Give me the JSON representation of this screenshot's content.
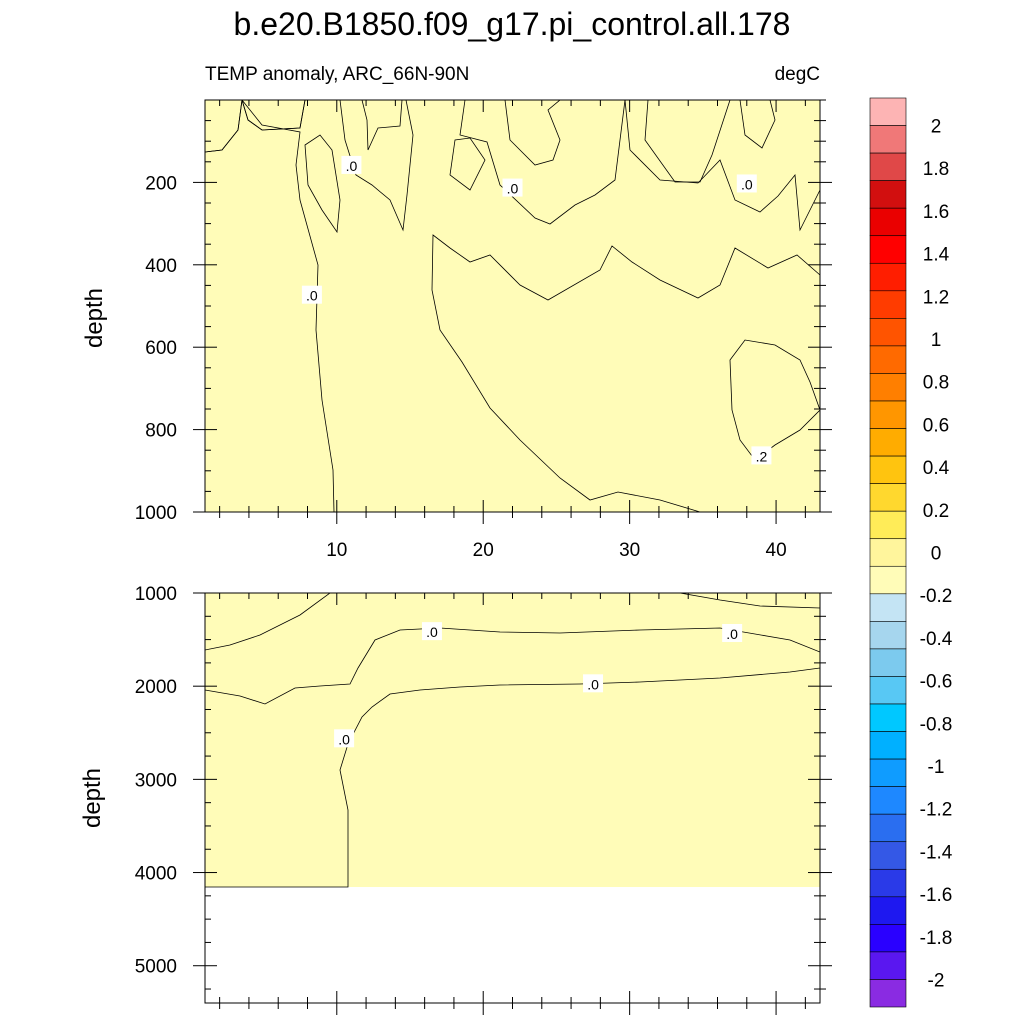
{
  "title": "b.e20.B1850.f09_g17.pi_control.all.178",
  "subtitle_left": "TEMP anomaly, ARC_66N-90N",
  "subtitle_right": "degC",
  "chart_data": [
    {
      "type": "heatmap",
      "panel": "upper",
      "xlabel": "",
      "ylabel": "depth",
      "xlim": [
        1,
        43
      ],
      "ylim": [
        1000,
        0
      ],
      "x_ticks": [
        10,
        20,
        30,
        40
      ],
      "y_ticks": [
        200,
        400,
        600,
        800,
        1000
      ],
      "contour_labels": [
        {
          "text": ".0",
          "x": 11.0,
          "y": 160
        },
        {
          "text": ".0",
          "x": 22.0,
          "y": 215
        },
        {
          "text": ".0",
          "x": 38.0,
          "y": 205
        },
        {
          "text": ".0",
          "x": 8.3,
          "y": 475
        },
        {
          "text": ".2",
          "x": 39.0,
          "y": 865
        }
      ]
    },
    {
      "type": "heatmap",
      "panel": "lower",
      "xlabel": "",
      "ylabel": "depth",
      "xlim": [
        1,
        43
      ],
      "ylim": [
        5400,
        1000
      ],
      "x_ticks": [
        10,
        20,
        30,
        40
      ],
      "y_ticks": [
        1000,
        2000,
        3000,
        4000,
        5000
      ],
      "data_bottom": 4120,
      "contour_labels": [
        {
          "text": ".0",
          "x": 16.5,
          "y": 1420
        },
        {
          "text": ".0",
          "x": 37.0,
          "y": 1440
        },
        {
          "text": ".0",
          "x": 27.5,
          "y": 1980
        },
        {
          "text": ".0",
          "x": 10.5,
          "y": 2570
        }
      ]
    }
  ],
  "colorbar": {
    "levels": [
      {
        "color": "#8a2be2"
      },
      {
        "color": "#5a17f0"
      },
      {
        "color": "#2a00ff"
      },
      {
        "color": "#1e18f0"
      },
      {
        "color": "#2a3ae8"
      },
      {
        "color": "#3458e6"
      },
      {
        "color": "#2a6ef0"
      },
      {
        "color": "#1e88ff"
      },
      {
        "color": "#0f9cff"
      },
      {
        "color": "#00b0ff"
      },
      {
        "color": "#00c8ff"
      },
      {
        "color": "#58c8f4"
      },
      {
        "color": "#7ccaee"
      },
      {
        "color": "#a6d6ee"
      },
      {
        "color": "#c4e4f4"
      },
      {
        "color": "#fffcb8"
      },
      {
        "color": "#fff59c"
      },
      {
        "color": "#ffec58"
      },
      {
        "color": "#ffd82e"
      },
      {
        "color": "#ffc40f"
      },
      {
        "color": "#ffac00"
      },
      {
        "color": "#ff9600"
      },
      {
        "color": "#ff7f00"
      },
      {
        "color": "#ff6a00"
      },
      {
        "color": "#ff5400"
      },
      {
        "color": "#ff3c00"
      },
      {
        "color": "#ff1e00"
      },
      {
        "color": "#ff0000"
      },
      {
        "color": "#ea0000"
      },
      {
        "color": "#d20f0f"
      },
      {
        "color": "#e04848"
      },
      {
        "color": "#f07878"
      },
      {
        "color": "#fdb4b4"
      }
    ],
    "labels": [
      "2",
      "1.8",
      "1.6",
      "1.4",
      "1.2",
      "1",
      "0.8",
      "0.6",
      "0.4",
      "0.2",
      "0",
      "-0.2",
      "-0.4",
      "-0.6",
      "-0.8",
      "-1",
      "-1.2",
      "-1.4",
      "-1.6",
      "-1.8",
      "-2"
    ]
  },
  "colors": {
    "pos1": "#fffcb8",
    "pos2": "#fff59c",
    "pos3": "#ffec58",
    "neg1": "#c4e4f4",
    "neg2": "#a6d6ee"
  }
}
